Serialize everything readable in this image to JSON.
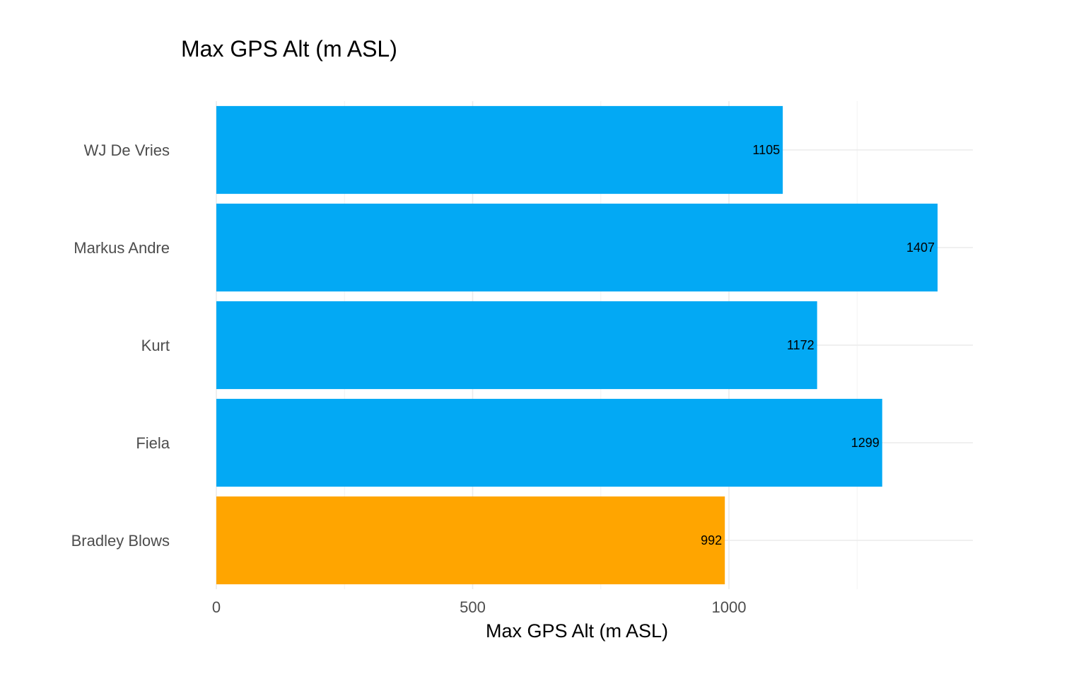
{
  "chart_data": {
    "type": "bar",
    "orientation": "horizontal",
    "title": "Max GPS Alt (m ASL)",
    "xlabel": "Max GPS Alt (m ASL)",
    "ylabel": "",
    "xlim": [
      0,
      1480
    ],
    "x_ticks": [
      0,
      500,
      1000
    ],
    "x_tick_labels": [
      "0",
      "500",
      "1000"
    ],
    "grid": true,
    "legend": "none",
    "categories": [
      "WJ De Vries",
      "Markus Andre",
      "Kurt",
      "Fiela",
      "Bradley Blows"
    ],
    "values": [
      1105,
      1407,
      1172,
      1299,
      992
    ],
    "data_labels": [
      "1105",
      "1407",
      "1172",
      "1299",
      "992"
    ],
    "bar_colors": [
      "#03a9f4",
      "#03a9f4",
      "#03a9f4",
      "#03a9f4",
      "#ffa500"
    ],
    "highlighted_category": "Bradley Blows"
  }
}
